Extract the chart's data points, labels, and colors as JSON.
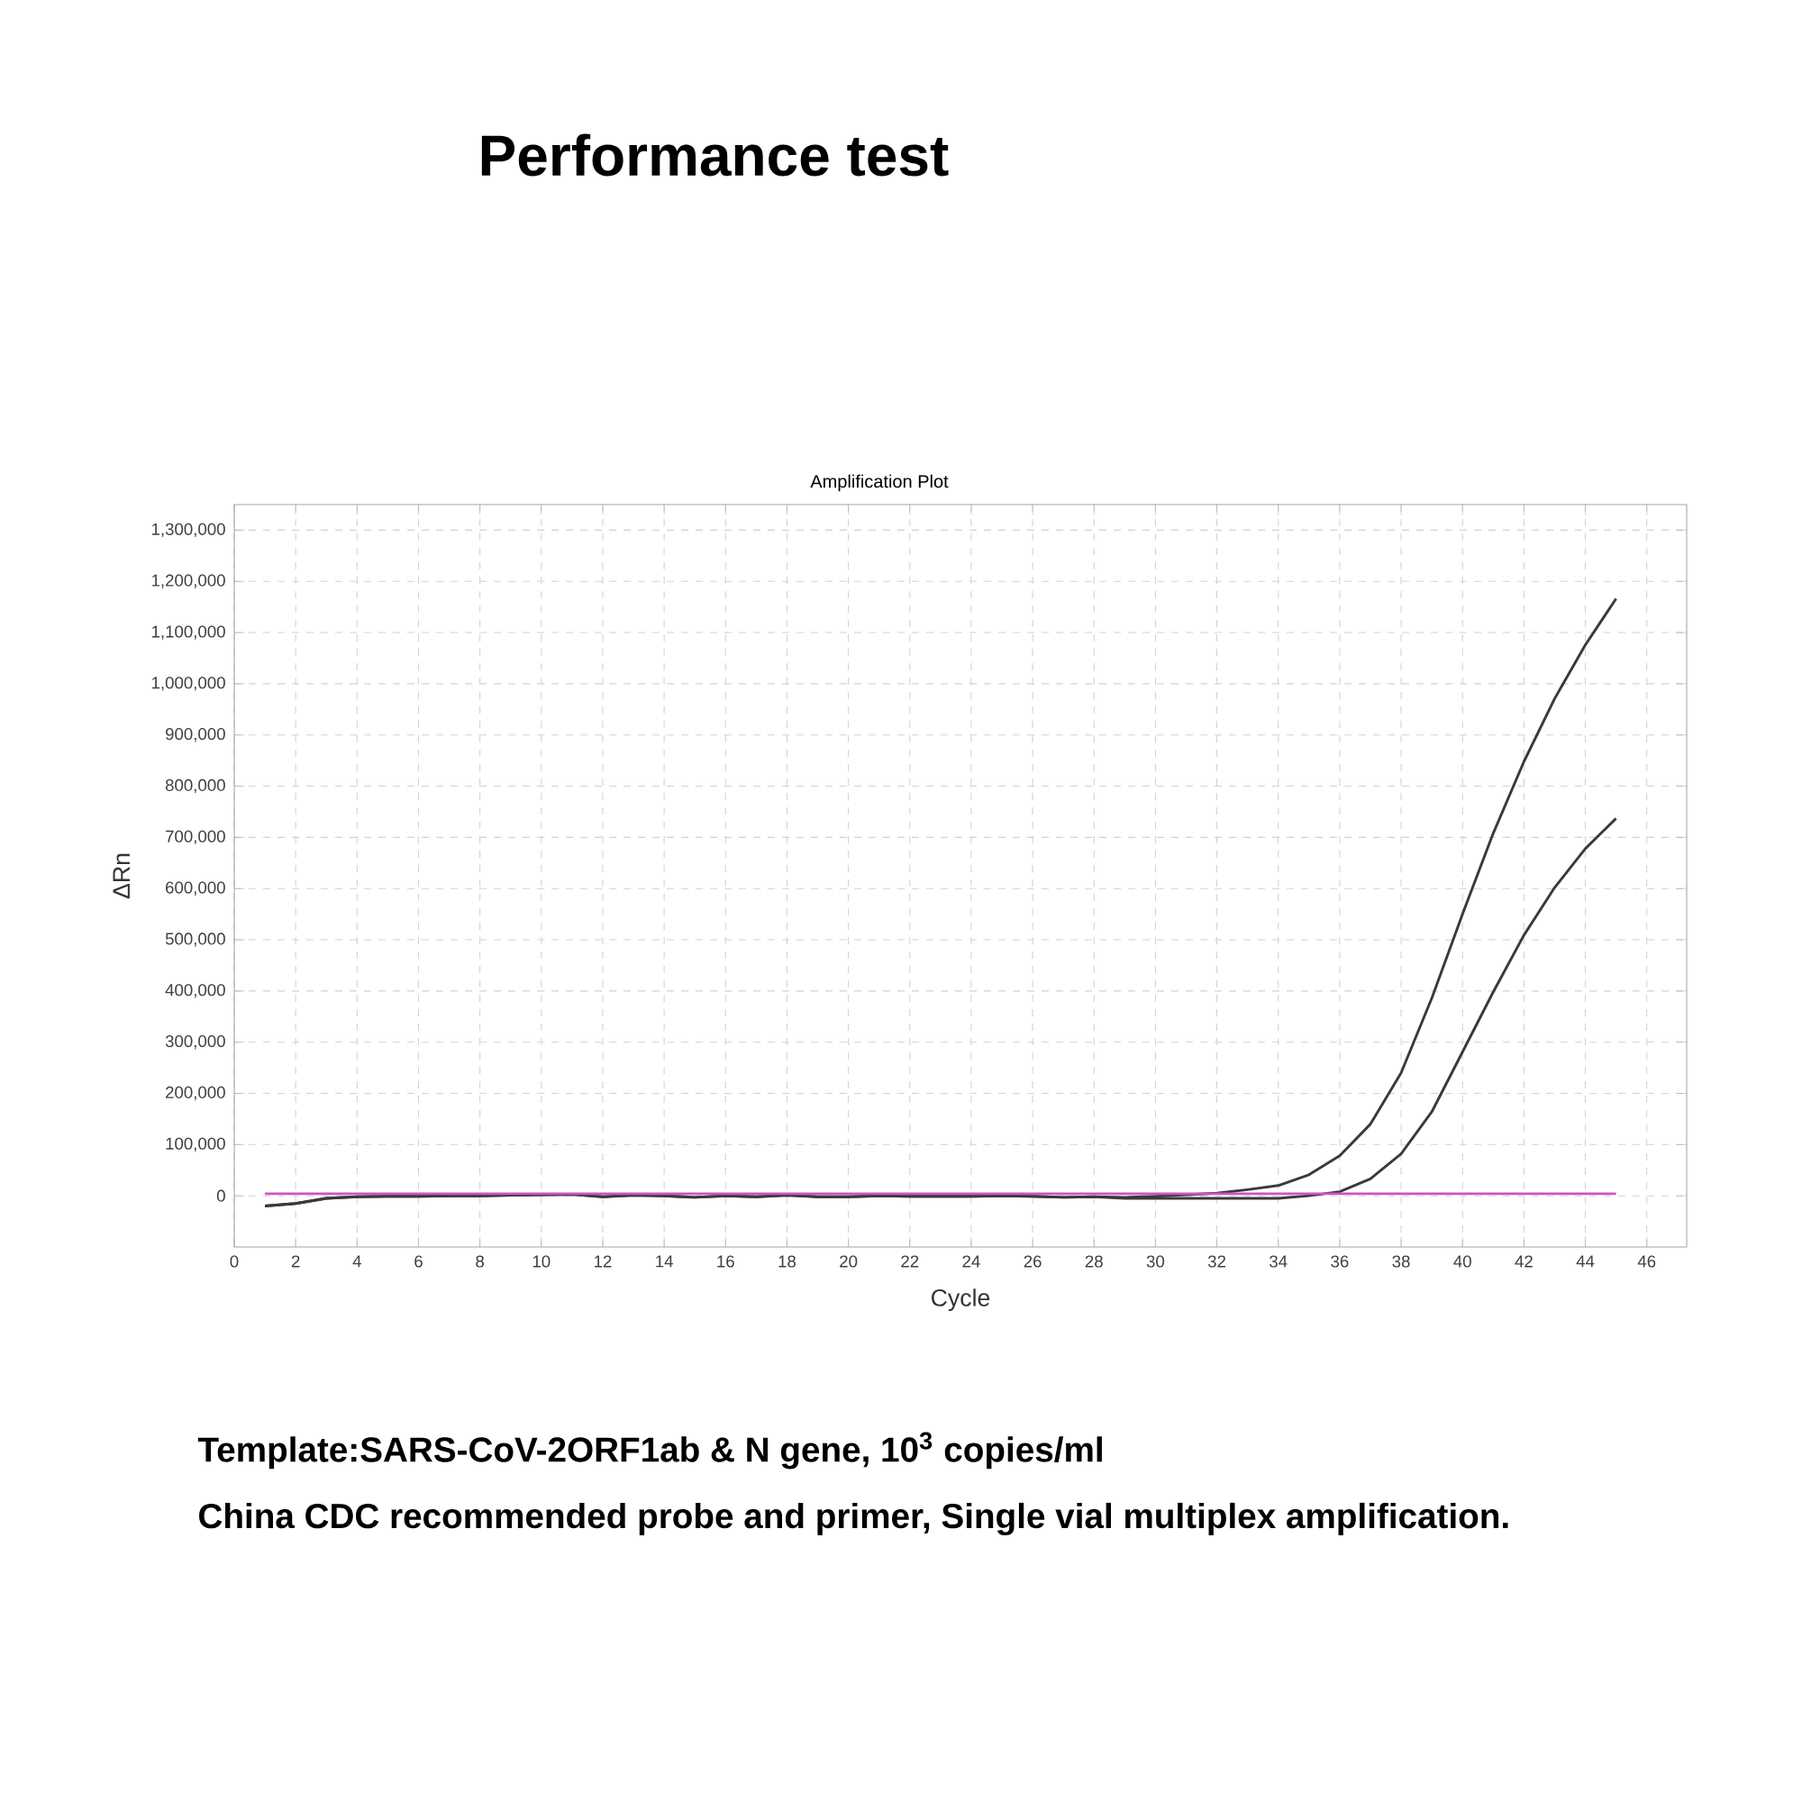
{
  "chart_data": {
    "type": "line",
    "title": "Performance test",
    "subtitle": "Amplification Plot",
    "xlabel": "Cycle",
    "ylabel": "ΔRn",
    "annotations": [
      "Template:SARS-CoV-2ORF1ab  & N gene, 10$^{3}$ copies/ml",
      "China CDC recommended probe and primer, Single vial multiplex amplification."
    ],
    "x": [
      1,
      2,
      3,
      4,
      5,
      6,
      7,
      8,
      9,
      10,
      11,
      12,
      13,
      14,
      15,
      16,
      17,
      18,
      19,
      20,
      21,
      22,
      23,
      24,
      25,
      26,
      27,
      28,
      29,
      30,
      31,
      32,
      33,
      34,
      35,
      36,
      37,
      38,
      39,
      40,
      41,
      42,
      43,
      44,
      45
    ],
    "series": [
      {
        "color": "#3a3a3a",
        "values": [
          -20000,
          -15000,
          -5000,
          -2000,
          -1000,
          -1000,
          0,
          0,
          1000,
          2000,
          3000,
          -2000,
          1000,
          0,
          -3000,
          0,
          -2000,
          1000,
          -2000,
          -2000,
          0,
          -1000,
          -1000,
          -1000,
          0,
          -1000,
          -3000,
          -2000,
          -3000,
          -1000,
          2000,
          5000,
          12000,
          20000,
          41000,
          78000,
          140000,
          240000,
          386000,
          550000,
          708000,
          848000,
          971000,
          1076000,
          1166000
        ]
      },
      {
        "color": "#3a3a3a",
        "values": [
          -20000,
          -15000,
          -5000,
          -2000,
          -1000,
          -1000,
          0,
          0,
          1000,
          2000,
          3000,
          -2000,
          1000,
          0,
          -3000,
          0,
          -2000,
          1000,
          -2000,
          -2000,
          0,
          -1000,
          -1000,
          -1000,
          0,
          -1000,
          -3000,
          -2000,
          -5000,
          -5000,
          -5000,
          -5000,
          -5000,
          -5000,
          0,
          8000,
          33000,
          82000,
          164000,
          281000,
          398000,
          509000,
          602000,
          678000,
          737000
        ]
      },
      {
        "color": "#d050d0",
        "x": [
          1,
          45
        ],
        "values": [
          4000,
          4000
        ]
      }
    ],
    "xlim": [
      0,
      47.3
    ],
    "ylim": [
      -100000,
      1350000
    ],
    "xticks": [
      0,
      2,
      4,
      6,
      8,
      10,
      12,
      14,
      16,
      18,
      20,
      22,
      24,
      26,
      28,
      30,
      32,
      34,
      36,
      38,
      40,
      42,
      44,
      46
    ],
    "yticks": [
      0,
      {
        "value": 100000,
        "label": "100,000"
      },
      {
        "value": 200000,
        "label": "200,000"
      },
      {
        "value": 300000,
        "label": "300,000"
      },
      {
        "value": 400000,
        "label": "400,000"
      },
      {
        "value": 500000,
        "label": "500,000"
      },
      {
        "value": 600000,
        "label": "600,000"
      },
      {
        "value": 700000,
        "label": "700,000"
      },
      {
        "value": 800000,
        "label": "800,000"
      },
      {
        "value": 900000,
        "label": "900,000"
      },
      {
        "value": 1000000,
        "label": "1,000,000"
      },
      {
        "value": 1100000,
        "label": "1,100,000"
      },
      {
        "value": 1200000,
        "label": "1,200,000"
      },
      {
        "value": 1300000,
        "label": "1,300,000"
      }
    ],
    "grid": true,
    "line_style": "solid"
  }
}
